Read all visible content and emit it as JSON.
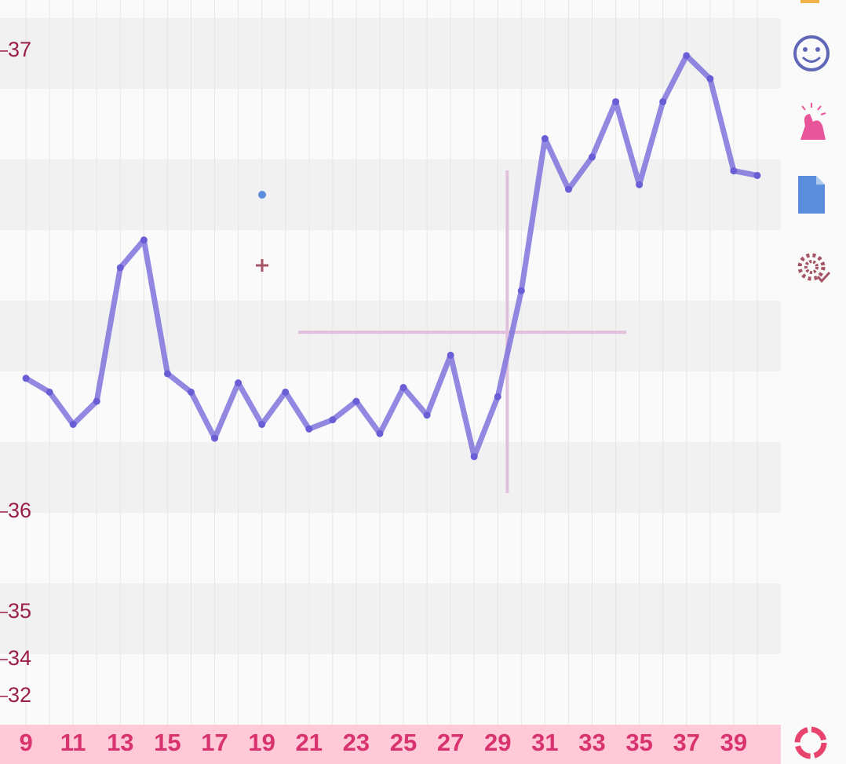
{
  "chart_data": {
    "type": "line",
    "x": [
      9,
      10,
      11,
      12,
      13,
      14,
      15,
      16,
      17,
      18,
      19,
      20,
      21,
      22,
      23,
      24,
      25,
      26,
      27,
      28,
      29,
      30,
      31,
      32,
      33,
      34,
      35,
      36,
      37,
      38,
      39,
      40
    ],
    "series": [
      {
        "color": "#7f72dc",
        "values": [
          36.29,
          36.26,
          36.19,
          36.24,
          36.53,
          36.59,
          36.3,
          36.26,
          36.16,
          36.28,
          36.19,
          36.26,
          36.18,
          36.2,
          36.24,
          36.17,
          36.27,
          36.21,
          36.34,
          36.12,
          36.25,
          36.48,
          36.81,
          36.7,
          36.77,
          36.89,
          36.71,
          36.89,
          36.99,
          36.94,
          36.74,
          36.73
        ]
      }
    ],
    "xlim": [
      7.9,
      41
    ],
    "xticks": [
      9,
      11,
      13,
      15,
      17,
      19,
      21,
      23,
      25,
      27,
      29,
      31,
      33,
      35,
      37,
      39
    ],
    "ylim": [
      32,
      37.1
    ],
    "yticks": [
      32,
      34,
      35,
      36,
      37
    ],
    "coverline": 36.39,
    "ovulation_x": 29.4,
    "grid": true
  }
}
